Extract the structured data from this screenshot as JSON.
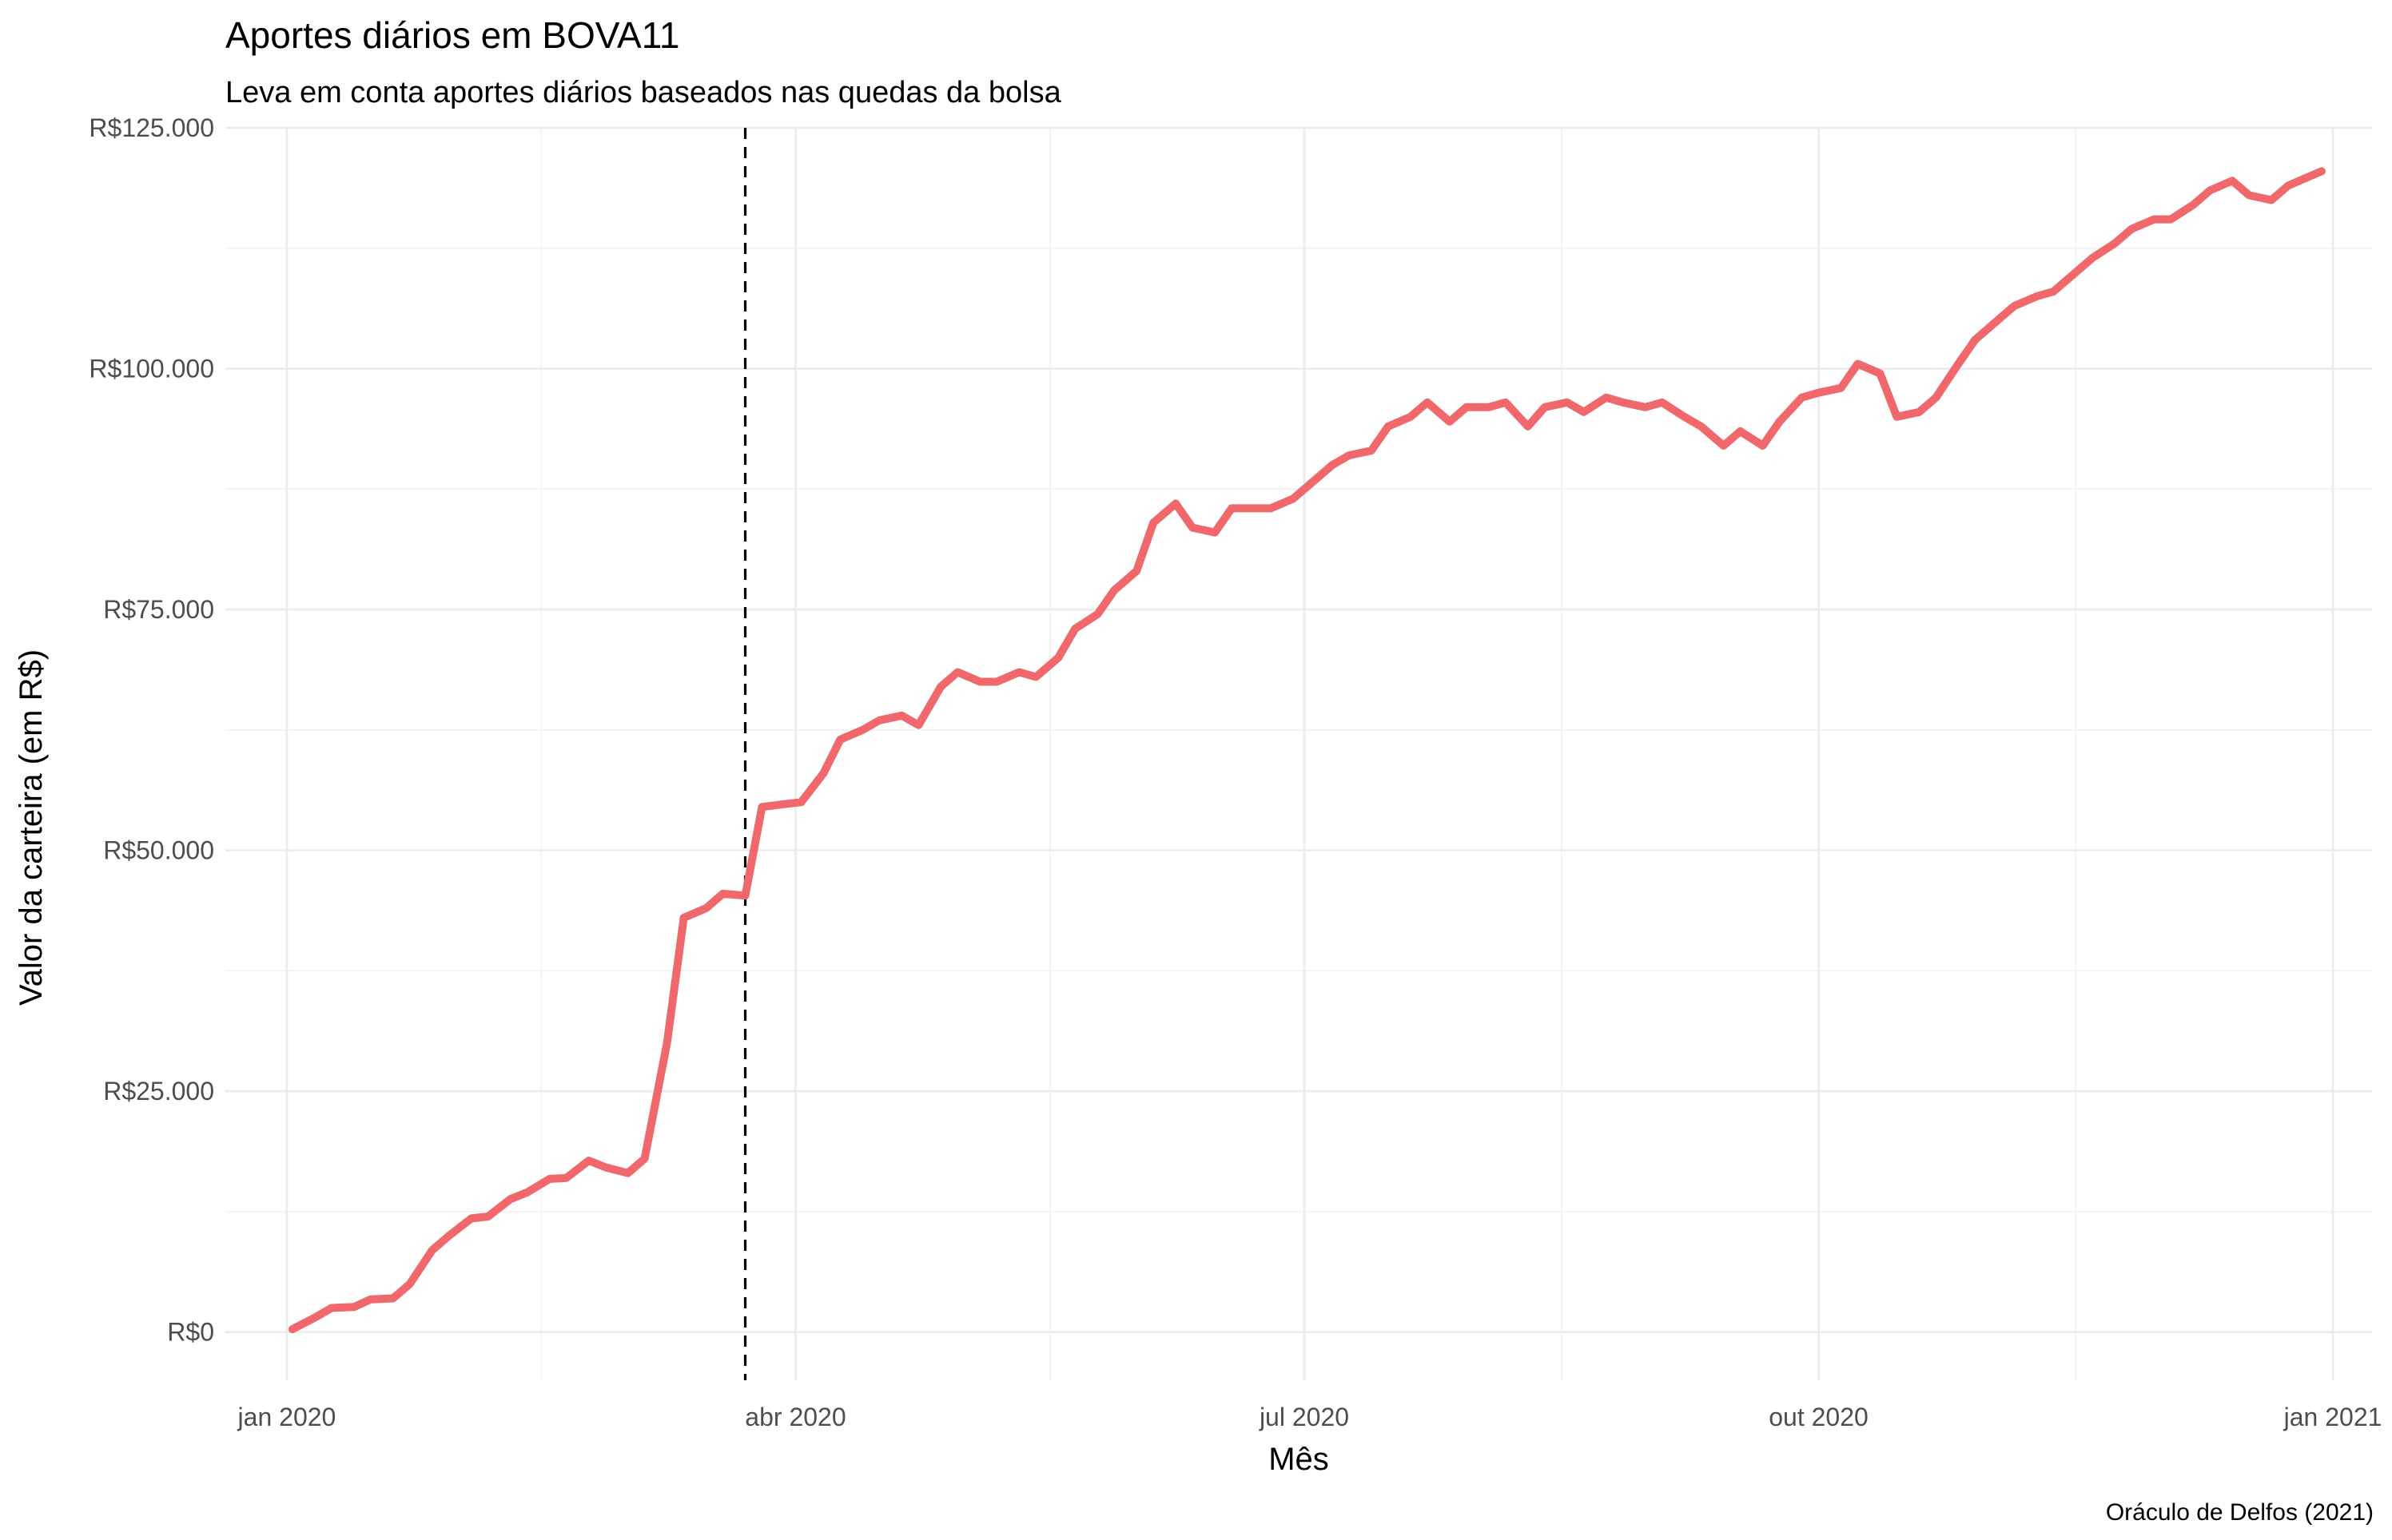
{
  "chart_data": {
    "type": "line",
    "title": "Aportes diários em BOVA11",
    "subtitle": "Leva em conta aportes diários baseados nas quedas da bolsa",
    "xlabel": "Mês",
    "ylabel": "Valor da carteira (em R$)",
    "caption": "Oráculo de Delfos (2021)",
    "ylim": [
      -5000,
      125000
    ],
    "xlim": [
      "2019-12-21",
      "2021-01-08"
    ],
    "y_ticks": [
      {
        "value": 0,
        "label": "R$0"
      },
      {
        "value": 25000,
        "label": "R$25.000"
      },
      {
        "value": 50000,
        "label": "R$50.000"
      },
      {
        "value": 75000,
        "label": "R$75.000"
      },
      {
        "value": 100000,
        "label": "R$100.000"
      },
      {
        "value": 125000,
        "label": "R$125.000"
      }
    ],
    "x_ticks": [
      {
        "value": "2020-01-01",
        "label": "jan 2020"
      },
      {
        "value": "2020-04-01",
        "label": "abr 2020"
      },
      {
        "value": "2020-07-01",
        "label": "jul 2020"
      },
      {
        "value": "2020-10-01",
        "label": "out 2020"
      },
      {
        "value": "2021-01-01",
        "label": "jan 2021"
      }
    ],
    "grid": true,
    "reference_line": {
      "x": "2020-03-23",
      "style": "dashed",
      "color": "#000000"
    },
    "series": [
      {
        "color": "#F0686B",
        "x": [
          "2020-01-02",
          "2020-01-06",
          "2020-01-09",
          "2020-01-13",
          "2020-01-16",
          "2020-01-20",
          "2020-01-23",
          "2020-01-27",
          "2020-01-30",
          "2020-02-03",
          "2020-02-06",
          "2020-02-10",
          "2020-02-13",
          "2020-02-17",
          "2020-02-20",
          "2020-02-24",
          "2020-02-27",
          "2020-03-02",
          "2020-03-05",
          "2020-03-09",
          "2020-03-12",
          "2020-03-16",
          "2020-03-19",
          "2020-03-23",
          "2020-03-26",
          "2020-03-30",
          "2020-04-02",
          "2020-04-06",
          "2020-04-09",
          "2020-04-13",
          "2020-04-16",
          "2020-04-20",
          "2020-04-23",
          "2020-04-27",
          "2020-04-30",
          "2020-05-04",
          "2020-05-07",
          "2020-05-11",
          "2020-05-14",
          "2020-05-18",
          "2020-05-21",
          "2020-05-25",
          "2020-05-28",
          "2020-06-01",
          "2020-06-04",
          "2020-06-08",
          "2020-06-11",
          "2020-06-15",
          "2020-06-18",
          "2020-06-22",
          "2020-06-25",
          "2020-06-29",
          "2020-07-02",
          "2020-07-06",
          "2020-07-09",
          "2020-07-13",
          "2020-07-16",
          "2020-07-20",
          "2020-07-23",
          "2020-07-27",
          "2020-07-30",
          "2020-08-03",
          "2020-08-06",
          "2020-08-10",
          "2020-08-13",
          "2020-08-17",
          "2020-08-20",
          "2020-08-24",
          "2020-08-27",
          "2020-08-31",
          "2020-09-03",
          "2020-09-07",
          "2020-09-10",
          "2020-09-14",
          "2020-09-17",
          "2020-09-21",
          "2020-09-24",
          "2020-09-28",
          "2020-10-01",
          "2020-10-05",
          "2020-10-08",
          "2020-10-12",
          "2020-10-15",
          "2020-10-19",
          "2020-10-22",
          "2020-10-26",
          "2020-10-29",
          "2020-11-02",
          "2020-11-05",
          "2020-11-09",
          "2020-11-12",
          "2020-11-16",
          "2020-11-19",
          "2020-11-23",
          "2020-11-26",
          "2020-11-30",
          "2020-12-03",
          "2020-12-07",
          "2020-12-10",
          "2020-12-14",
          "2020-12-17",
          "2020-12-21",
          "2020-12-24",
          "2020-12-30"
        ],
        "values": [
          300,
          1500,
          2500,
          2600,
          3400,
          3500,
          5000,
          8500,
          10000,
          11800,
          12000,
          13800,
          14500,
          15900,
          16000,
          17800,
          17100,
          16500,
          18000,
          30000,
          43000,
          44000,
          45500,
          45300,
          54500,
          54800,
          55000,
          58000,
          61500,
          62500,
          63500,
          64000,
          63000,
          67000,
          68500,
          67500,
          67500,
          68500,
          68000,
          70000,
          73000,
          74500,
          77000,
          79000,
          84000,
          86000,
          83500,
          83000,
          85500,
          85500,
          85500,
          86500,
          88000,
          90000,
          91000,
          91500,
          94000,
          95000,
          96500,
          94500,
          96000,
          96000,
          96500,
          94000,
          96000,
          96500,
          95500,
          97000,
          96500,
          96000,
          96500,
          95000,
          94000,
          92000,
          93500,
          92000,
          94500,
          97000,
          97500,
          98000,
          100500,
          99500,
          95000,
          95500,
          97000,
          100500,
          103000,
          105000,
          106500,
          107500,
          108000,
          110000,
          111500,
          113000,
          114500,
          115500,
          115500,
          117000,
          118500,
          119500,
          118000,
          117500,
          119000,
          120500
        ]
      }
    ]
  }
}
